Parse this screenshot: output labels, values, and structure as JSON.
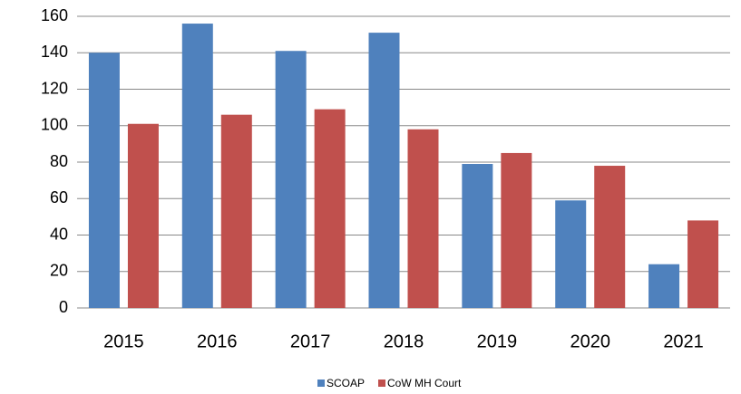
{
  "chart_data": {
    "type": "bar",
    "categories": [
      "2015",
      "2016",
      "2017",
      "2018",
      "2019",
      "2020",
      "2021"
    ],
    "series": [
      {
        "name": "SCOAP",
        "color": "#4f81bd",
        "values": [
          140,
          156,
          141,
          151,
          79,
          59,
          24
        ]
      },
      {
        "name": "CoW MH Court",
        "color": "#c0504d",
        "values": [
          101,
          106,
          109,
          98,
          85,
          78,
          48
        ]
      }
    ],
    "ylim": [
      0,
      160
    ],
    "yticks": [
      0,
      20,
      40,
      60,
      80,
      100,
      120,
      140,
      160
    ],
    "grid": true,
    "legend": "bottom"
  }
}
